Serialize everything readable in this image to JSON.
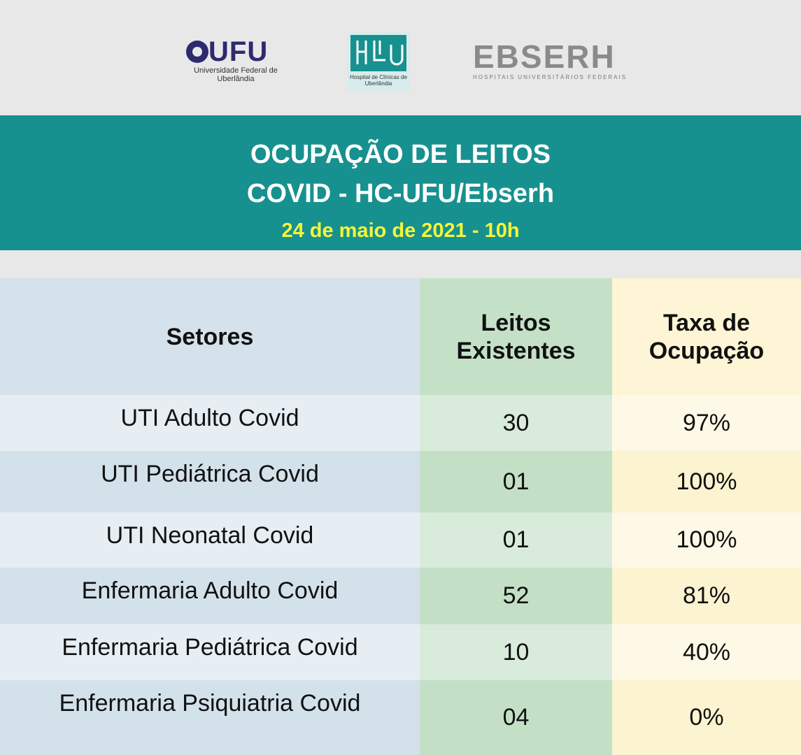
{
  "header": {
    "logos": {
      "ufu": {
        "name": "UFU",
        "subtitle": "Universidade Federal de Uberlândia"
      },
      "hc": {
        "subtitle": "Hospital de Clínicas de Uberlândia"
      },
      "ebserh": {
        "name": "EBSERH",
        "subtitle": "HOSPITAIS UNIVERSITÁRIOS FEDERAIS"
      }
    },
    "title": [
      "OCUPAÇÃO DE LEITOS",
      "COVID - HC-UFU/Ebserh"
    ],
    "date": "24 de maio de 2021 - 10h"
  },
  "table": {
    "columns": [
      "Setores",
      "Leitos Existentes",
      "Taxa de Ocupação"
    ],
    "rows": [
      [
        "UTI Adulto Covid",
        "30",
        "97%"
      ],
      [
        "UTI Pediátrica Covid",
        "01",
        "100%"
      ],
      [
        "UTI Neonatal Covid",
        "01",
        "100%"
      ],
      [
        "Enfermaria Adulto Covid",
        "52",
        "81%"
      ],
      [
        "Enfermaria Pediátrica Covid",
        "10",
        "40%"
      ],
      [
        "Enfermaria Psiquiatria Covid",
        "04",
        "0%"
      ]
    ]
  }
}
